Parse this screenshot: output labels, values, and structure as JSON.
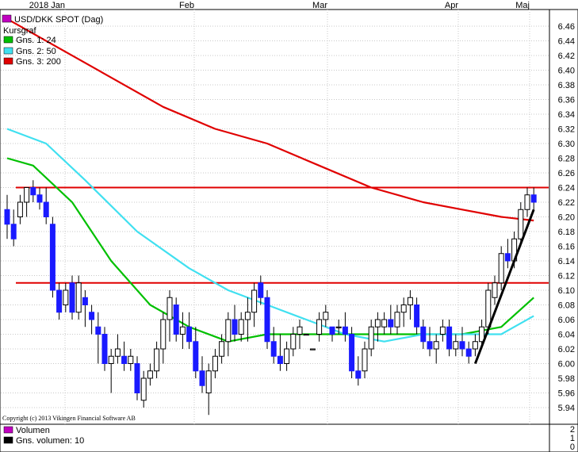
{
  "chart_data": {
    "type": "candlestick",
    "title": "USD/DKK SPOT (Dag)",
    "x_ticks": [
      "2018 Jan",
      "Feb",
      "Mar",
      "Apr",
      "Maj"
    ],
    "y_ticks": [
      "6.46",
      "6.44",
      "6.42",
      "6.40",
      "6.38",
      "6.36",
      "6.34",
      "6.32",
      "6.30",
      "6.28",
      "6.26",
      "6.24",
      "6.22",
      "6.20",
      "6.18",
      "6.16",
      "6.14",
      "6.12",
      "6.10",
      "6.08",
      "6.06",
      "6.04",
      "6.02",
      "6.00",
      "5.98",
      "5.96",
      "5.94"
    ],
    "ylim": [
      5.93,
      6.47
    ],
    "grid": true,
    "legend": [
      {
        "label": "USD/DKK SPOT (Dag)",
        "color": "#c000c0"
      },
      {
        "label": "Kursgraf",
        "color": null
      },
      {
        "label": "Gns. 1: 24",
        "color": "#00c000"
      },
      {
        "label": "Gns. 2: 50",
        "color": "#40e0f0"
      },
      {
        "label": "Gns. 3: 200",
        "color": "#e00000"
      }
    ],
    "copyright": "Copyright (c) 2013 Vikingen Financial Software AB",
    "candles": [
      [
        6.21,
        6.23,
        6.17,
        6.19
      ],
      [
        6.19,
        6.21,
        6.16,
        6.17
      ],
      [
        6.2,
        6.23,
        6.19,
        6.22
      ],
      [
        6.22,
        6.24,
        6.2,
        6.24
      ],
      [
        6.24,
        6.25,
        6.22,
        6.23
      ],
      [
        6.23,
        6.24,
        6.21,
        6.22
      ],
      [
        6.22,
        6.24,
        6.19,
        6.2
      ],
      [
        6.19,
        6.2,
        6.09,
        6.1
      ],
      [
        6.1,
        6.11,
        6.06,
        6.07
      ],
      [
        6.08,
        6.11,
        6.07,
        6.1
      ],
      [
        6.11,
        6.12,
        6.06,
        6.07
      ],
      [
        6.07,
        6.12,
        6.06,
        6.11
      ],
      [
        6.09,
        6.1,
        6.05,
        6.08
      ],
      [
        6.07,
        6.08,
        6.04,
        6.06
      ],
      [
        6.05,
        6.07,
        6.0,
        6.04
      ],
      [
        6.04,
        6.05,
        5.99,
        6.0
      ],
      [
        6.0,
        6.02,
        5.96,
        6.01
      ],
      [
        6.01,
        6.04,
        6.0,
        6.02
      ],
      [
        6.01,
        6.03,
        5.99,
        6.0
      ],
      [
        6.0,
        6.02,
        5.99,
        6.01
      ],
      [
        6.0,
        6.01,
        5.95,
        5.96
      ],
      [
        5.95,
        5.99,
        5.94,
        5.98
      ],
      [
        5.98,
        6.0,
        5.97,
        5.99
      ],
      [
        5.99,
        6.03,
        5.98,
        6.02
      ],
      [
        6.02,
        6.07,
        6.0,
        6.06
      ],
      [
        6.06,
        6.1,
        6.03,
        6.09
      ],
      [
        6.08,
        6.09,
        6.03,
        6.04
      ],
      [
        6.04,
        6.07,
        6.02,
        6.05
      ],
      [
        6.05,
        6.07,
        6.02,
        6.03
      ],
      [
        6.03,
        6.05,
        5.98,
        5.99
      ],
      [
        5.99,
        6.01,
        5.96,
        5.97
      ],
      [
        5.96,
        6.0,
        5.93,
        5.99
      ],
      [
        5.99,
        6.02,
        5.98,
        6.01
      ],
      [
        6.01,
        6.04,
        6.0,
        6.03
      ],
      [
        6.03,
        6.07,
        6.01,
        6.06
      ],
      [
        6.06,
        6.08,
        6.03,
        6.04
      ],
      [
        6.04,
        6.07,
        6.03,
        6.06
      ],
      [
        6.06,
        6.09,
        6.03,
        6.07
      ],
      [
        6.07,
        6.11,
        6.05,
        6.1
      ],
      [
        6.11,
        6.12,
        6.08,
        6.09
      ],
      [
        6.09,
        6.1,
        6.02,
        6.03
      ],
      [
        6.03,
        6.05,
        6.0,
        6.01
      ],
      [
        6.01,
        6.04,
        5.99,
        6.0
      ],
      [
        6.0,
        6.03,
        5.99,
        6.02
      ],
      [
        6.02,
        6.05,
        6.01,
        6.04
      ],
      [
        6.04,
        6.06,
        6.02,
        6.05
      ],
      [
        6.04,
        6.04,
        6.04,
        6.04
      ],
      [
        6.02,
        6.02,
        6.02,
        6.02
      ],
      [
        6.04,
        6.07,
        6.03,
        6.06
      ],
      [
        6.06,
        6.08,
        6.05,
        6.07
      ],
      [
        6.05,
        6.05,
        6.03,
        6.04
      ],
      [
        6.05,
        6.06,
        6.04,
        6.05
      ],
      [
        6.05,
        6.07,
        6.03,
        6.04
      ],
      [
        6.04,
        6.05,
        5.98,
        5.99
      ],
      [
        5.99,
        6.01,
        5.97,
        5.98
      ],
      [
        5.99,
        6.03,
        5.98,
        6.02
      ],
      [
        6.02,
        6.06,
        6.01,
        6.05
      ],
      [
        6.05,
        6.07,
        6.03,
        6.06
      ],
      [
        6.05,
        6.07,
        6.04,
        6.06
      ],
      [
        6.06,
        6.08,
        6.04,
        6.05
      ],
      [
        6.05,
        6.08,
        6.04,
        6.07
      ],
      [
        6.07,
        6.09,
        6.05,
        6.08
      ],
      [
        6.08,
        6.1,
        6.06,
        6.09
      ],
      [
        6.08,
        6.09,
        6.04,
        6.05
      ],
      [
        6.05,
        6.06,
        6.02,
        6.03
      ],
      [
        6.03,
        6.05,
        6.01,
        6.02
      ],
      [
        6.02,
        6.04,
        6.0,
        6.03
      ],
      [
        6.04,
        6.06,
        6.03,
        6.05
      ],
      [
        6.05,
        6.06,
        6.01,
        6.02
      ],
      [
        6.02,
        6.04,
        6.01,
        6.03
      ],
      [
        6.03,
        6.05,
        6.01,
        6.02
      ],
      [
        6.02,
        6.03,
        6.0,
        6.01
      ],
      [
        6.02,
        6.04,
        6.01,
        6.03
      ],
      [
        6.03,
        6.06,
        6.02,
        6.05
      ],
      [
        6.05,
        6.11,
        6.04,
        6.1
      ],
      [
        6.09,
        6.12,
        6.08,
        6.11
      ],
      [
        6.11,
        6.16,
        6.1,
        6.15
      ],
      [
        6.15,
        6.17,
        6.13,
        6.14
      ],
      [
        6.14,
        6.18,
        6.13,
        6.17
      ],
      [
        6.17,
        6.22,
        6.16,
        6.21
      ],
      [
        6.21,
        6.24,
        6.2,
        6.23
      ],
      [
        6.23,
        6.24,
        6.21,
        6.22
      ]
    ],
    "series": [
      {
        "name": "Gns. 1: 24",
        "color": "#00c000",
        "values": [
          [
            0,
            6.28
          ],
          [
            4,
            6.27
          ],
          [
            10,
            6.22
          ],
          [
            16,
            6.14
          ],
          [
            22,
            6.08
          ],
          [
            28,
            6.05
          ],
          [
            34,
            6.03
          ],
          [
            40,
            6.04
          ],
          [
            46,
            6.04
          ],
          [
            52,
            6.04
          ],
          [
            58,
            6.04
          ],
          [
            64,
            6.04
          ],
          [
            70,
            6.04
          ],
          [
            76,
            6.05
          ],
          [
            81,
            6.09
          ]
        ]
      },
      {
        "name": "Gns. 2: 50",
        "color": "#40e0f0",
        "values": [
          [
            0,
            6.32
          ],
          [
            6,
            6.3
          ],
          [
            12,
            6.25
          ],
          [
            20,
            6.18
          ],
          [
            28,
            6.13
          ],
          [
            34,
            6.1
          ],
          [
            40,
            6.08
          ],
          [
            46,
            6.06
          ],
          [
            52,
            6.04
          ],
          [
            58,
            6.03
          ],
          [
            64,
            6.04
          ],
          [
            70,
            6.04
          ],
          [
            76,
            6.04
          ],
          [
            81,
            6.065
          ]
        ]
      },
      {
        "name": "Gns. 3: 200",
        "color": "#e00000",
        "values": [
          [
            0,
            6.47
          ],
          [
            8,
            6.43
          ],
          [
            16,
            6.39
          ],
          [
            24,
            6.35
          ],
          [
            32,
            6.32
          ],
          [
            40,
            6.3
          ],
          [
            48,
            6.27
          ],
          [
            56,
            6.24
          ],
          [
            64,
            6.22
          ],
          [
            70,
            6.21
          ],
          [
            76,
            6.2
          ],
          [
            81,
            6.195
          ]
        ]
      }
    ],
    "horizontal_lines": [
      6.24,
      6.11
    ],
    "trend_line": [
      [
        72,
        6.0
      ],
      [
        81,
        6.21
      ]
    ]
  },
  "volume_panel": {
    "y_ticks": [
      "2",
      "1",
      "0"
    ],
    "legend": [
      {
        "label": "Volumen",
        "color": "#c000c0"
      },
      {
        "label": "Gns. volumen: 10",
        "color": "#000000"
      }
    ]
  }
}
